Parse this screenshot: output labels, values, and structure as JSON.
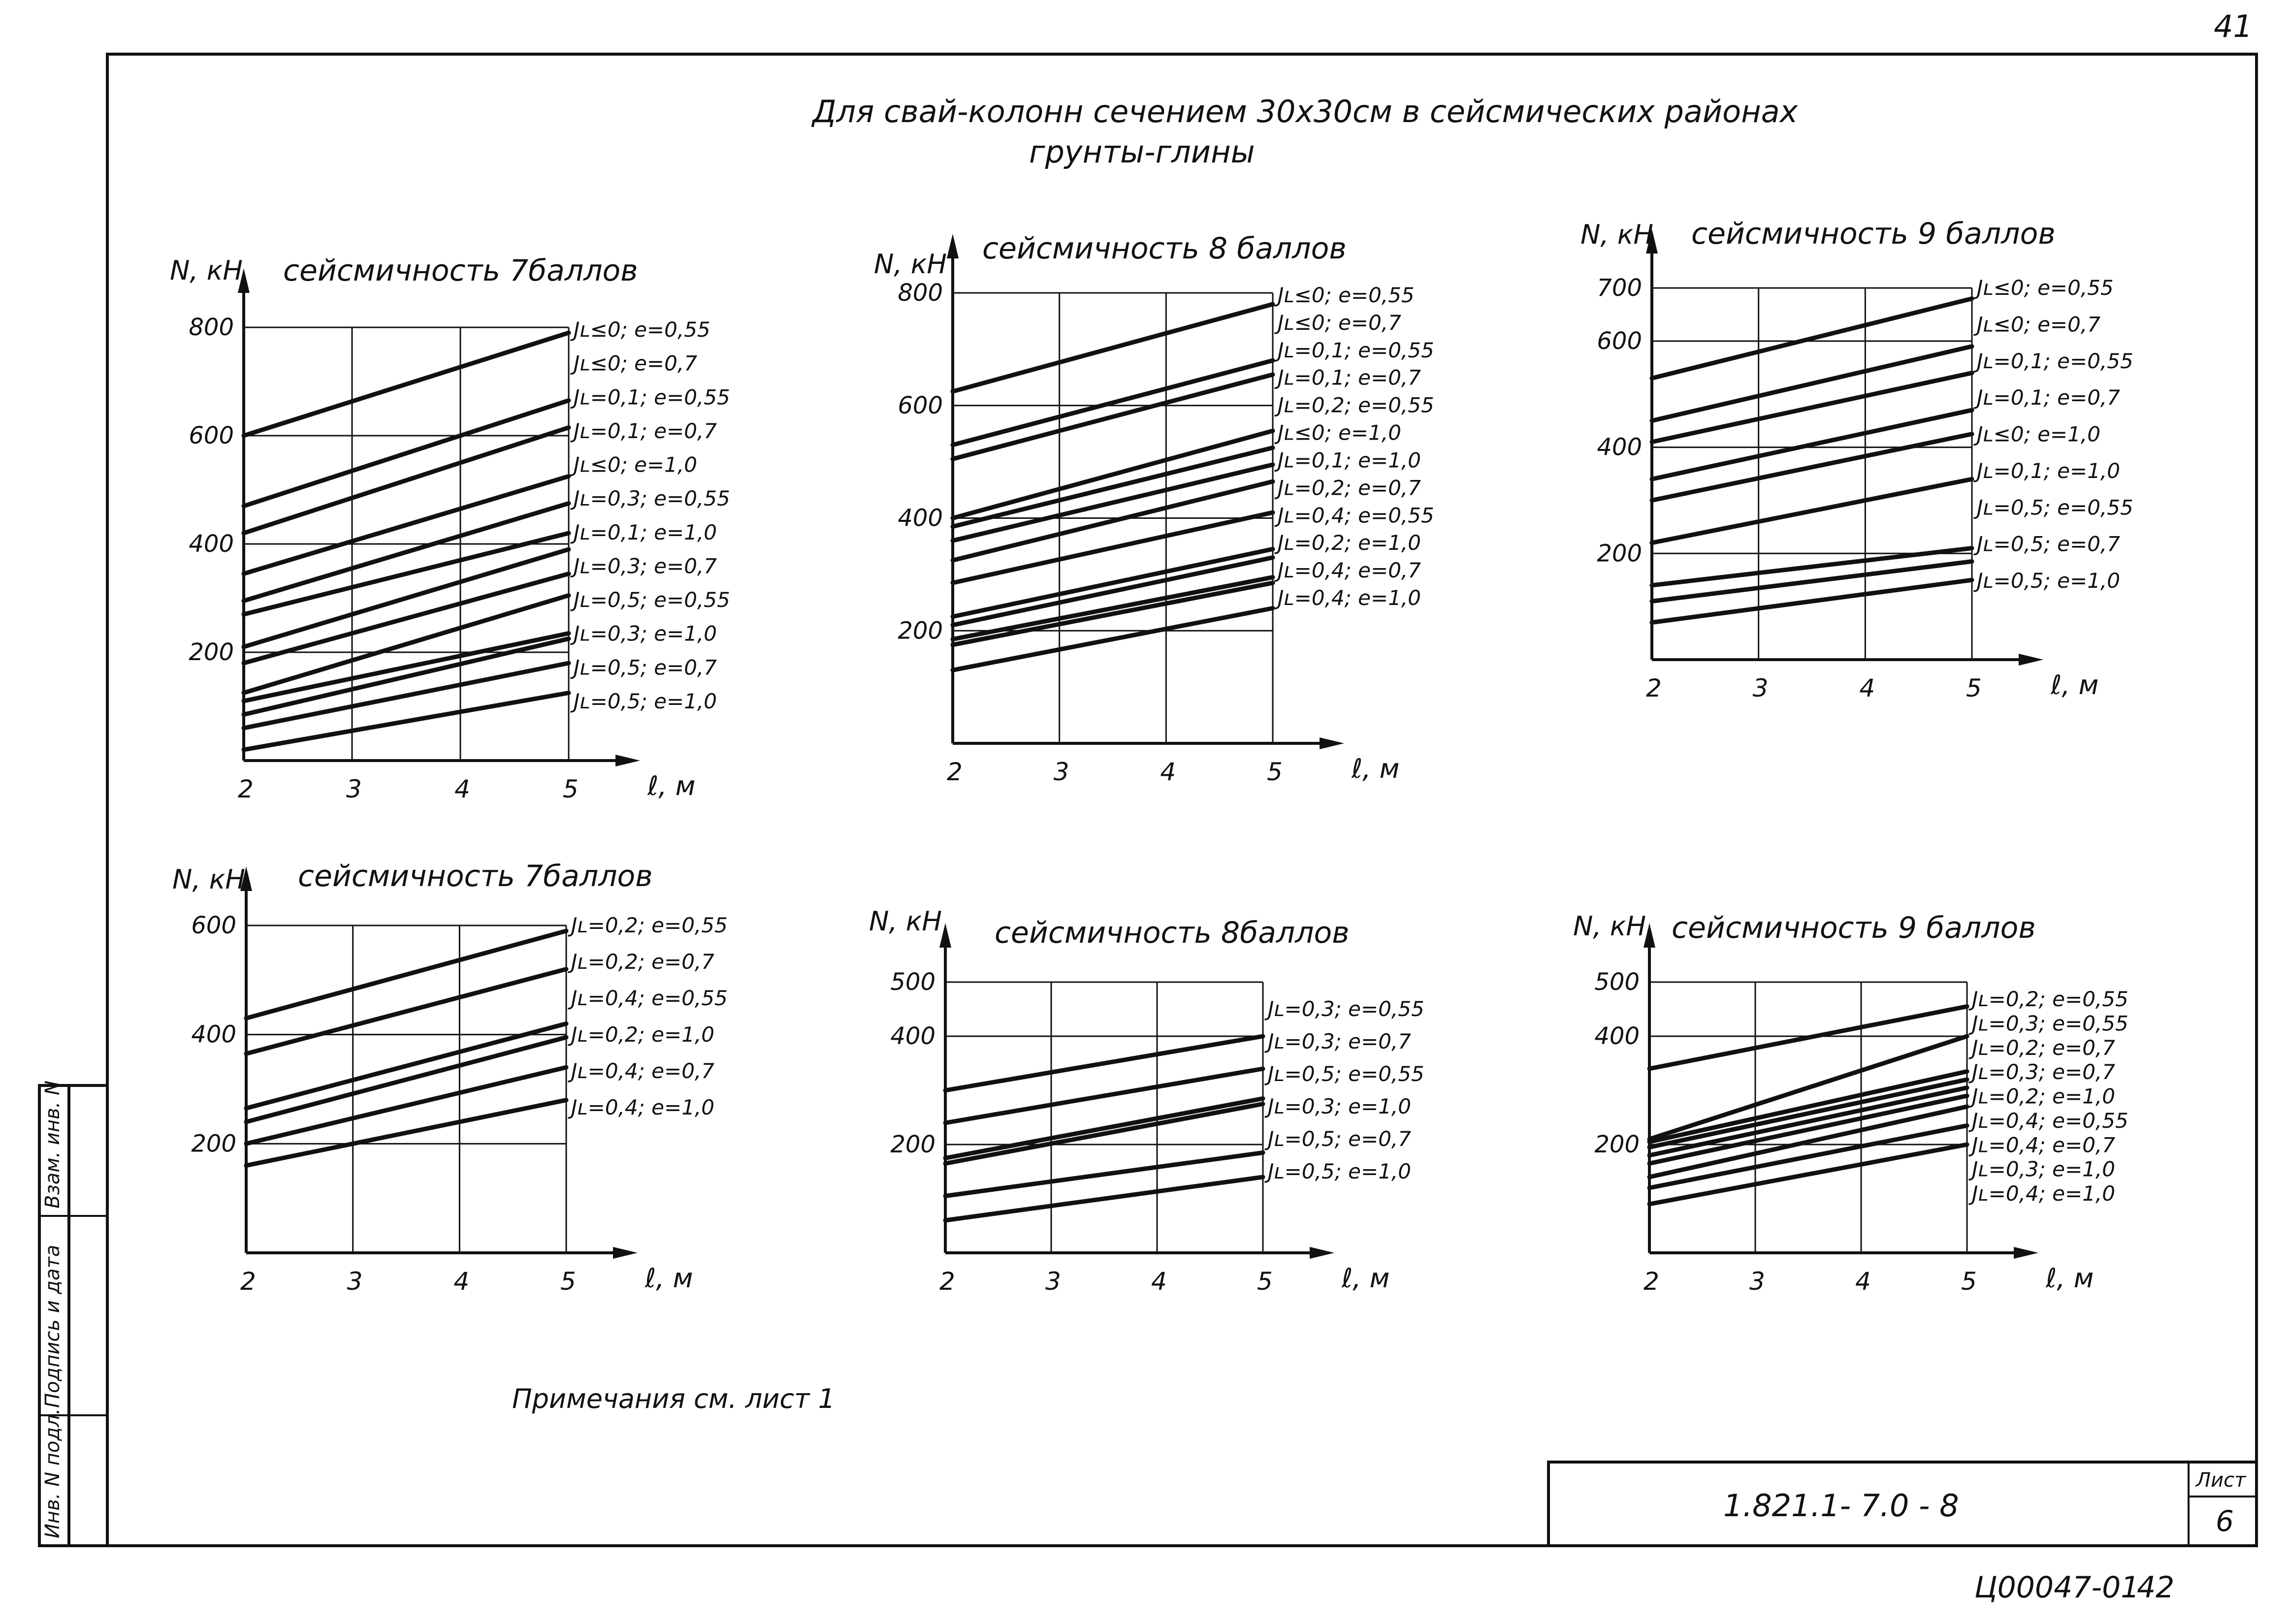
{
  "page": {
    "page_number_top": "41",
    "title_line1": "Для свай-колонн сечением 30х30см в сейсмических районах",
    "title_line2": "грунты-глины",
    "note": "Примечания см. лист 1",
    "stamp_code": "1.821.1- 7.0 - 8",
    "sheet_label": "Лист",
    "sheet_number": "6",
    "bottom_code": "Ц00047-01",
    "bottom_number": "42",
    "side_fields": [
      "Инв. N подл.",
      "Подпись и дата",
      "Взам. инв. N"
    ]
  },
  "chart_data": [
    {
      "type": "line",
      "title": "сейсмичность 7баллов",
      "ylabel": "N, кН",
      "xlabel": "ℓ, м",
      "x": [
        2,
        5
      ],
      "xticks": [
        "2",
        "3",
        "4",
        "5"
      ],
      "ylim": [
        0,
        800
      ],
      "yticks": [
        {
          "v": 200,
          "label": "200"
        },
        {
          "v": 400,
          "label": "400"
        },
        {
          "v": 600,
          "label": "600"
        },
        {
          "v": 800,
          "label": "800"
        }
      ],
      "grid": true,
      "series": [
        {
          "name": "Jʟ≤0; e=0,55",
          "values": [
            600,
            790
          ]
        },
        {
          "name": "Jʟ≤0; e=0,7",
          "values": [
            470,
            665
          ]
        },
        {
          "name": "Jʟ=0,1; e=0,55",
          "values": [
            420,
            615
          ]
        },
        {
          "name": "Jʟ=0,1; e=0,7",
          "values": [
            345,
            525
          ]
        },
        {
          "name": "Jʟ≤0; e=1,0",
          "values": [
            295,
            475
          ]
        },
        {
          "name": "Jʟ=0,3; e=0,55",
          "values": [
            270,
            420
          ]
        },
        {
          "name": "Jʟ=0,1; e=1,0",
          "values": [
            210,
            390
          ]
        },
        {
          "name": "Jʟ=0,3; e=0,7",
          "values": [
            180,
            345
          ]
        },
        {
          "name": "Jʟ=0,5; e=0,55",
          "values": [
            125,
            305
          ]
        },
        {
          "name": "Jʟ=0,3; e=1,0",
          "values": [
            110,
            235
          ]
        },
        {
          "name": "Jʟ=0,5; e=0,7",
          "values": [
            85,
            225
          ]
        },
        {
          "name": "Jʟ=0,5; e=1,0",
          "values": [
            60,
            180
          ]
        },
        {
          "name": "",
          "values": [
            20,
            125
          ]
        }
      ]
    },
    {
      "type": "line",
      "title": "сейсмичность 8 баллов",
      "ylabel": "N, кН",
      "xlabel": "ℓ, м",
      "x": [
        2,
        5
      ],
      "xticks": [
        "2",
        "3",
        "4",
        "5"
      ],
      "ylim": [
        0,
        800
      ],
      "yticks": [
        {
          "v": 200,
          "label": "200"
        },
        {
          "v": 400,
          "label": "400"
        },
        {
          "v": 600,
          "label": "600"
        },
        {
          "v": 800,
          "label": "800"
        }
      ],
      "grid": true,
      "series": [
        {
          "name": "Jʟ≤0; e=0,55",
          "values": [
            625,
            780
          ]
        },
        {
          "name": "Jʟ≤0; e=0,7",
          "values": [
            530,
            680
          ]
        },
        {
          "name": "Jʟ=0,1; e=0,55",
          "values": [
            505,
            655
          ]
        },
        {
          "name": "Jʟ=0,1; e=0,7",
          "values": [
            400,
            555
          ]
        },
        {
          "name": "Jʟ=0,2; e=0,55",
          "values": [
            385,
            525
          ]
        },
        {
          "name": "Jʟ≤0; e=1,0",
          "values": [
            360,
            495
          ]
        },
        {
          "name": "Jʟ=0,1; e=1,0",
          "values": [
            325,
            465
          ]
        },
        {
          "name": "Jʟ=0,2; e=0,7",
          "values": [
            285,
            410
          ]
        },
        {
          "name": "Jʟ=0,4; e=0,55",
          "values": [
            225,
            345
          ]
        },
        {
          "name": "Jʟ=0,2; e=1,0",
          "values": [
            210,
            330
          ]
        },
        {
          "name": "Jʟ=0,4; e=0,7",
          "values": [
            185,
            295
          ]
        },
        {
          "name": "Jʟ=0,4; e=1,0",
          "values": [
            175,
            285
          ]
        },
        {
          "name": "",
          "values": [
            130,
            240
          ]
        }
      ]
    },
    {
      "type": "line",
      "title": "сейсмичность 9 баллов",
      "ylabel": "N, кН",
      "xlabel": "ℓ, м",
      "x": [
        2,
        5
      ],
      "xticks": [
        "2",
        "3",
        "4",
        "5"
      ],
      "ylim": [
        0,
        700
      ],
      "yticks": [
        {
          "v": 200,
          "label": "200"
        },
        {
          "v": 400,
          "label": "400"
        },
        {
          "v": 600,
          "label": "600"
        },
        {
          "v": 700,
          "label": "700"
        }
      ],
      "grid": true,
      "series": [
        {
          "name": "Jʟ≤0; e=0,55",
          "values": [
            530,
            680
          ]
        },
        {
          "name": "Jʟ≤0; e=0,7",
          "values": [
            450,
            590
          ]
        },
        {
          "name": "Jʟ=0,1; e=0,55",
          "values": [
            410,
            540
          ]
        },
        {
          "name": "Jʟ=0,1; e=0,7",
          "values": [
            340,
            470
          ]
        },
        {
          "name": "Jʟ≤0; e=1,0",
          "values": [
            300,
            425
          ]
        },
        {
          "name": "Jʟ=0,1; e=1,0",
          "values": [
            220,
            340
          ]
        },
        {
          "name": "Jʟ=0,5; e=0,55",
          "values": [
            140,
            210
          ]
        },
        {
          "name": "Jʟ=0,5; e=0,7",
          "values": [
            110,
            185
          ]
        },
        {
          "name": "Jʟ=0,5; e=1,0",
          "values": [
            70,
            150
          ]
        }
      ]
    },
    {
      "type": "line",
      "title": "сейсмичность 7баллов",
      "ylabel": "N, кН",
      "xlabel": "ℓ, м",
      "x": [
        2,
        5
      ],
      "xticks": [
        "2",
        "3",
        "4",
        "5"
      ],
      "ylim": [
        0,
        600
      ],
      "yticks": [
        {
          "v": 200,
          "label": "200"
        },
        {
          "v": 400,
          "label": "400"
        },
        {
          "v": 600,
          "label": "600"
        }
      ],
      "grid": true,
      "series": [
        {
          "name": "Jʟ=0,2; e=0,55",
          "values": [
            430,
            590
          ]
        },
        {
          "name": "Jʟ=0,2; e=0,7",
          "values": [
            365,
            520
          ]
        },
        {
          "name": "Jʟ=0,4; e=0,55",
          "values": [
            265,
            420
          ]
        },
        {
          "name": "Jʟ=0,2; e=1,0",
          "values": [
            240,
            395
          ]
        },
        {
          "name": "Jʟ=0,4; e=0,7",
          "values": [
            200,
            340
          ]
        },
        {
          "name": "Jʟ=0,4; e=1,0",
          "values": [
            160,
            280
          ]
        }
      ]
    },
    {
      "type": "line",
      "title": "сейсмичность 8баллов",
      "ylabel": "N, кН",
      "xlabel": "ℓ, м",
      "x": [
        2,
        5
      ],
      "xticks": [
        "2",
        "3",
        "4",
        "5"
      ],
      "ylim": [
        0,
        500
      ],
      "yticks": [
        {
          "v": 200,
          "label": "200"
        },
        {
          "v": 400,
          "label": "400"
        },
        {
          "v": 500,
          "label": "500"
        }
      ],
      "grid": true,
      "series": [
        {
          "name": "Jʟ=0,3; e=0,55",
          "values": [
            300,
            400
          ]
        },
        {
          "name": "Jʟ=0,3; e=0,7",
          "values": [
            240,
            340
          ]
        },
        {
          "name": "Jʟ=0,5; e=0,55",
          "values": [
            175,
            285
          ]
        },
        {
          "name": "Jʟ=0,3; e=1,0",
          "values": [
            165,
            275
          ]
        },
        {
          "name": "Jʟ=0,5; e=0,7",
          "values": [
            105,
            185
          ]
        },
        {
          "name": "Jʟ=0,5; e=1,0",
          "values": [
            60,
            140
          ]
        }
      ]
    },
    {
      "type": "line",
      "title": "сейсмичность 9 баллов",
      "ylabel": "N, кН",
      "xlabel": "ℓ, м",
      "x": [
        2,
        5
      ],
      "xticks": [
        "2",
        "3",
        "4",
        "5"
      ],
      "ylim": [
        0,
        500
      ],
      "yticks": [
        {
          "v": 200,
          "label": "200"
        },
        {
          "v": 400,
          "label": "400"
        },
        {
          "v": 500,
          "label": "500"
        }
      ],
      "grid": true,
      "series": [
        {
          "name": "Jʟ=0,2; e=0,55",
          "values": [
            340,
            455
          ]
        },
        {
          "name": "Jʟ=0,3; e=0,55",
          "values": [
            210,
            400
          ]
        },
        {
          "name": "Jʟ=0,2; e=0,7",
          "values": [
            205,
            335
          ]
        },
        {
          "name": "Jʟ=0,3; e=0,7",
          "values": [
            195,
            320
          ]
        },
        {
          "name": "Jʟ=0,2; e=1,0",
          "values": [
            180,
            305
          ]
        },
        {
          "name": "Jʟ=0,4; e=0,55",
          "values": [
            165,
            290
          ]
        },
        {
          "name": "Jʟ=0,4; e=0,7",
          "values": [
            140,
            270
          ]
        },
        {
          "name": "Jʟ=0,3; e=1,0",
          "values": [
            120,
            235
          ]
        },
        {
          "name": "Jʟ=0,4; e=1,0",
          "values": [
            90,
            200
          ]
        }
      ]
    }
  ]
}
